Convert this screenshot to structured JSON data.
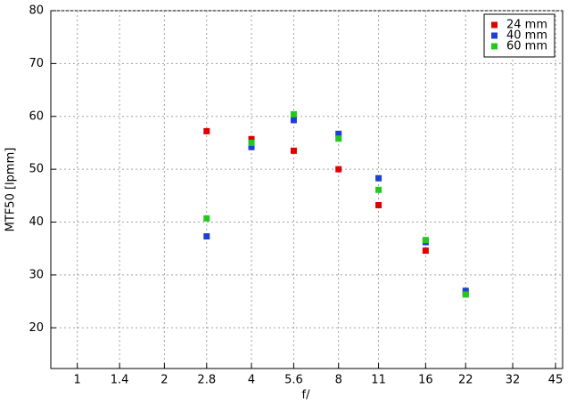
{
  "chart_data": {
    "type": "scatter",
    "x_label": "f/",
    "y_label": "MTF50 [lpmm]",
    "x": [
      2.8,
      4,
      5.6,
      8,
      11,
      16,
      22
    ],
    "series": [
      {
        "name": "24 mm",
        "color": "#e00000",
        "values": [
          57.2,
          55.7,
          53.5,
          50.0,
          43.2,
          34.6,
          26.5
        ]
      },
      {
        "name": "40 mm",
        "color": "#1c3fd4",
        "values": [
          37.3,
          54.2,
          59.3,
          56.7,
          48.3,
          36.2,
          27.0
        ]
      },
      {
        "name": "60 mm",
        "color": "#22c81e",
        "values": [
          40.7,
          55.0,
          60.4,
          55.8,
          46.1,
          36.6,
          26.3
        ]
      }
    ],
    "xscale": "log",
    "xlim": [
      0.81,
      47.6
    ],
    "xticks": [
      1,
      1.4,
      2,
      2.8,
      4,
      5.6,
      8,
      11,
      16,
      22,
      32,
      45
    ],
    "ylim": [
      12.3,
      80
    ],
    "yticks": [
      20,
      30,
      40,
      50,
      60,
      70,
      80
    ],
    "grid": true,
    "legend": "top-right"
  }
}
